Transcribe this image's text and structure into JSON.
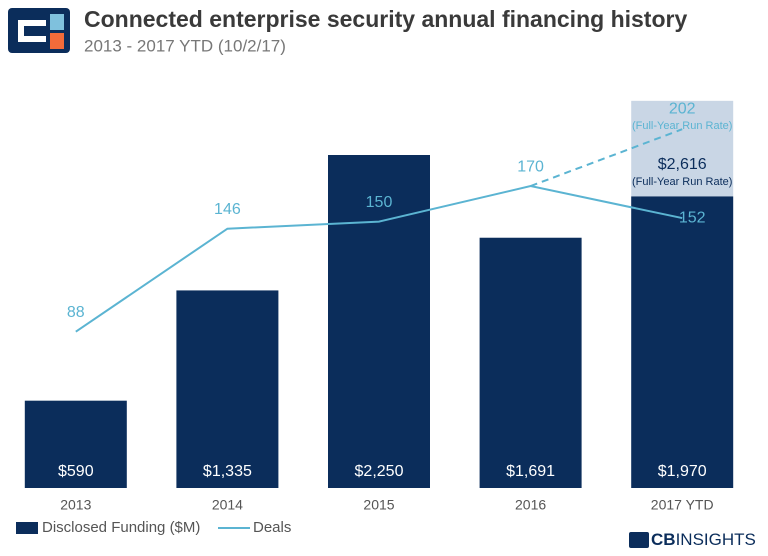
{
  "chart_data": {
    "type": "bar-line",
    "title": "Connected enterprise security annual financing history",
    "subtitle": "2013 - 2017 YTD (10/2/17)",
    "categories": [
      "2013",
      "2014",
      "2015",
      "2016",
      "2017 YTD"
    ],
    "series": [
      {
        "name": "Disclosed Funding ($M)",
        "type": "bar",
        "color": "#0b2d5b",
        "values": [
          590,
          1335,
          2250,
          1691,
          1970
        ],
        "value_labels": [
          "$590",
          "$1,335",
          "$2,250",
          "$1,691",
          "$1,970"
        ]
      },
      {
        "name": "Deals",
        "type": "line",
        "axis": "y2",
        "color": "#5bb4d2",
        "values": [
          88,
          146,
          150,
          170,
          152
        ]
      }
    ],
    "projection": {
      "funding": 2616,
      "funding_label": "$2,616",
      "deals": 202,
      "note": "(Full-Year Run Rate)",
      "color": "#c9d6e5"
    },
    "ylim": [
      0,
      3000
    ],
    "y2lim": [
      0,
      250
    ],
    "logo": [
      "CB",
      "INSIGHTS"
    ]
  }
}
